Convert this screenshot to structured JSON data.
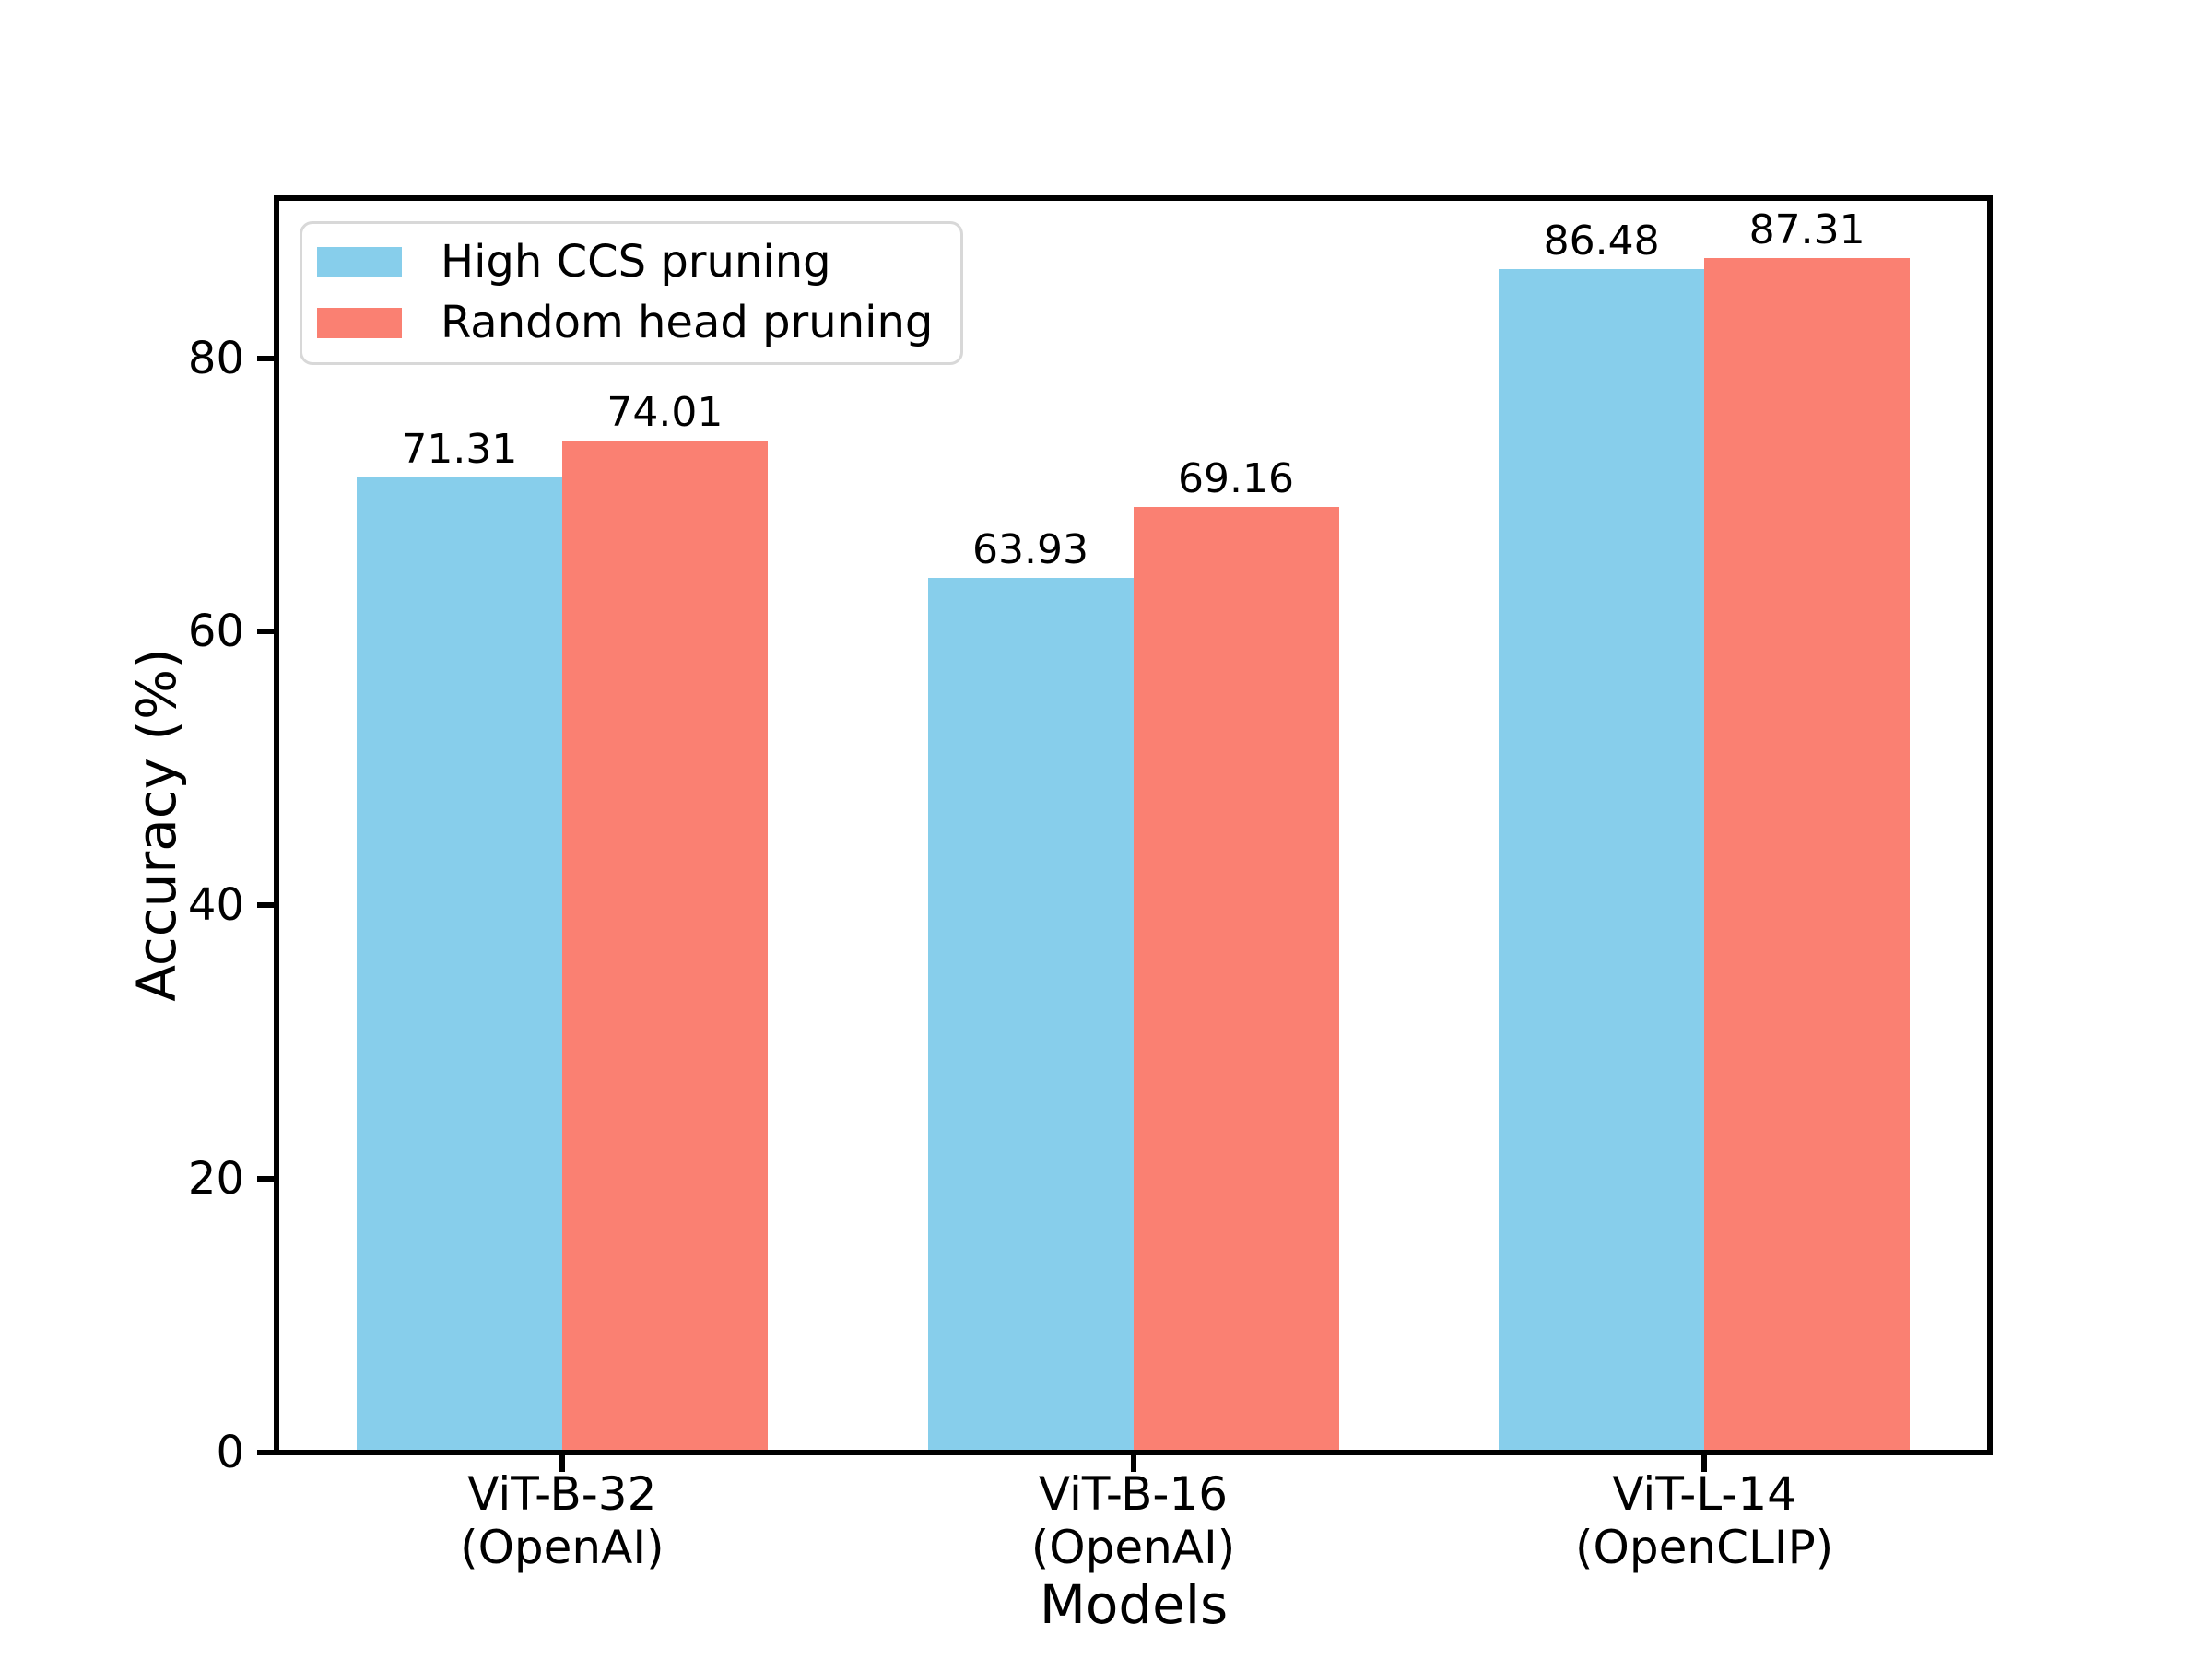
{
  "chart_data": {
    "type": "bar",
    "title": "",
    "xlabel": "Models",
    "ylabel": "Accuracy (%)",
    "categories": [
      {
        "line1": "ViT-B-32",
        "line2": "(OpenAI)"
      },
      {
        "line1": "ViT-B-16",
        "line2": "(OpenAI)"
      },
      {
        "line1": "ViT-L-14",
        "line2": "(OpenCLIP)"
      }
    ],
    "series": [
      {
        "name": "High CCS pruning",
        "color": "#87CEEB",
        "values": [
          71.31,
          63.93,
          86.48
        ]
      },
      {
        "name": "Random head pruning",
        "color": "#FA8072",
        "values": [
          74.01,
          69.16,
          87.31
        ]
      }
    ],
    "value_label_decimals": 2,
    "yticks": [
      0,
      20,
      40,
      60,
      80
    ],
    "ylim": [
      0,
      91.7
    ],
    "grid": false,
    "legend_position": "upper left"
  },
  "colors": {
    "axis": "#000000",
    "background": "#FFFFFF",
    "legend_border": "#D8D8D8"
  }
}
